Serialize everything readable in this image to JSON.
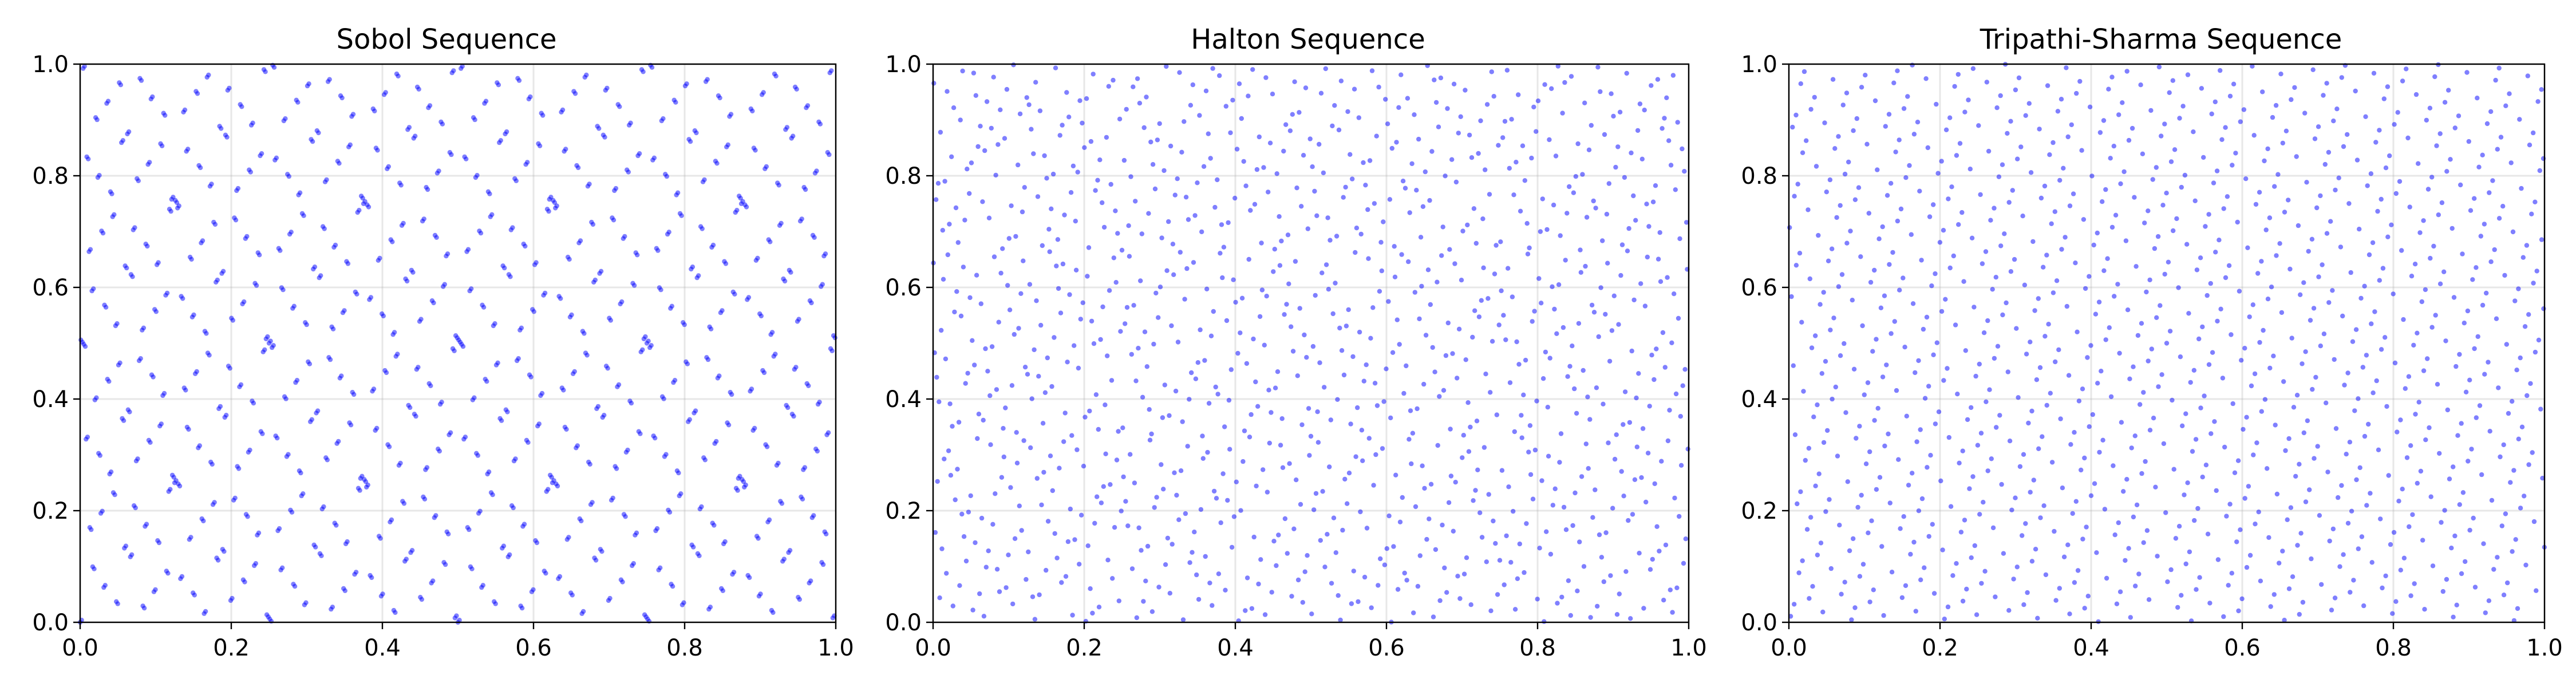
{
  "chart_data": [
    {
      "type": "scatter",
      "title": "Sobol Sequence",
      "sequence": "sobol",
      "n_points": 1024,
      "xlim": [
        0,
        1
      ],
      "ylim": [
        0,
        1
      ],
      "xticks": [
        "0.0",
        "0.2",
        "0.4",
        "0.6",
        "0.8",
        "1.0"
      ],
      "yticks": [
        "0.0",
        "0.2",
        "0.4",
        "0.6",
        "0.8",
        "1.0"
      ],
      "grid": true,
      "point_color": "#0000ff",
      "point_alpha": 0.5
    },
    {
      "type": "scatter",
      "title": "Halton Sequence",
      "sequence": "halton",
      "n_points": 1024,
      "xlim": [
        0,
        1
      ],
      "ylim": [
        0,
        1
      ],
      "xticks": [
        "0.0",
        "0.2",
        "0.4",
        "0.6",
        "0.8",
        "1.0"
      ],
      "yticks": [
        "0.0",
        "0.2",
        "0.4",
        "0.6",
        "0.8",
        "1.0"
      ],
      "grid": true,
      "point_color": "#0000ff",
      "point_alpha": 0.5
    },
    {
      "type": "scatter",
      "title": "Tripathi-Sharma Sequence",
      "sequence": "tripathi-sharma",
      "n_points": 1024,
      "xlim": [
        0,
        1
      ],
      "ylim": [
        0,
        1
      ],
      "xticks": [
        "0.0",
        "0.2",
        "0.4",
        "0.6",
        "0.8",
        "1.0"
      ],
      "yticks": [
        "0.0",
        "0.2",
        "0.4",
        "0.6",
        "0.8",
        "1.0"
      ],
      "grid": true,
      "point_color": "#0000ff",
      "point_alpha": 0.5
    }
  ]
}
